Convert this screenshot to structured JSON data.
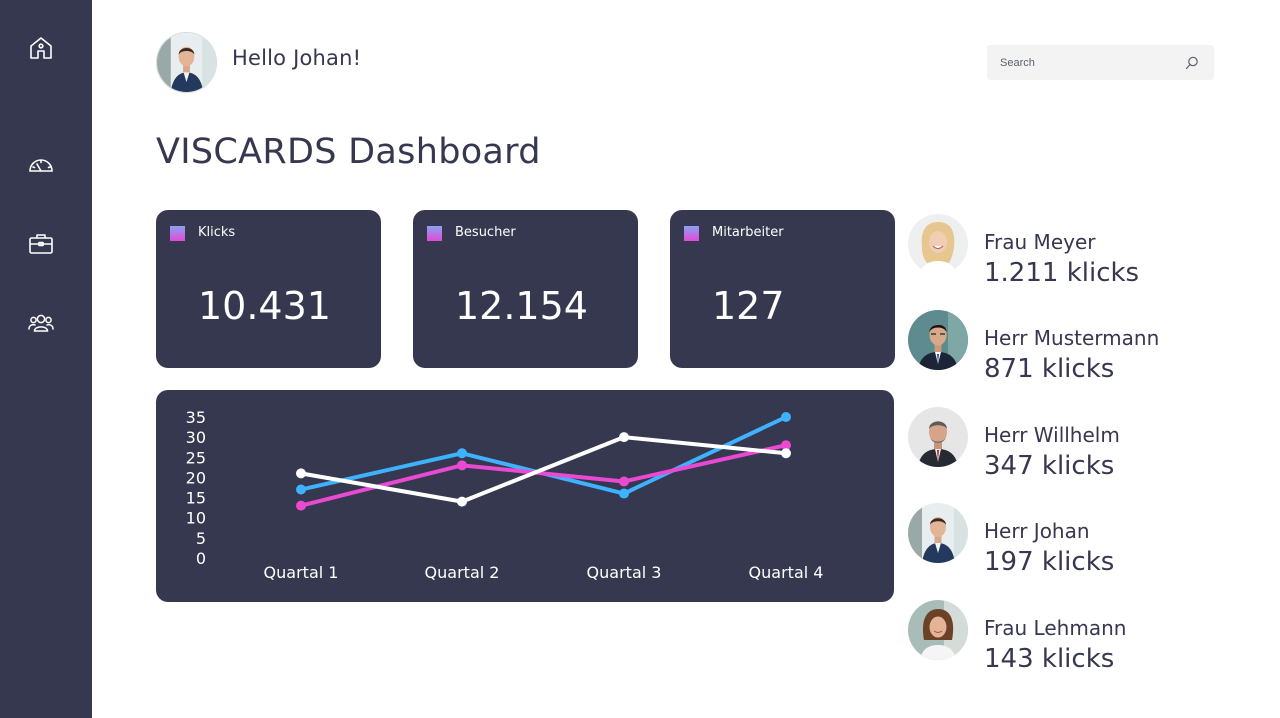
{
  "sidebar": {
    "items": [
      {
        "icon": "home-icon"
      },
      {
        "icon": "speedometer-icon"
      },
      {
        "icon": "briefcase-icon"
      },
      {
        "icon": "users-icon"
      }
    ]
  },
  "header": {
    "greeting": "Hello Johan!",
    "search": {
      "placeholder": "Search",
      "icon": "search-icon"
    }
  },
  "page": {
    "title": "VISCARDS Dashboard"
  },
  "stats": [
    {
      "label": "Klicks",
      "value": "10.431"
    },
    {
      "label": "Besucher",
      "value": "12.154"
    },
    {
      "label": "Mitarbeiter",
      "value": "127"
    }
  ],
  "chart_data": {
    "type": "line",
    "categories": [
      "Quartal 1",
      "Quartal 2",
      "Quartal 3",
      "Quartal 4"
    ],
    "yticks": [
      0,
      5,
      10,
      15,
      20,
      25,
      30,
      35
    ],
    "ylim": [
      0,
      35
    ],
    "grid": false,
    "legend": "none",
    "series": [
      {
        "color": "#3fb2ff",
        "values": [
          17,
          26,
          16,
          35
        ]
      },
      {
        "color": "#ea49d2",
        "values": [
          13,
          23,
          19,
          28
        ]
      },
      {
        "color": "#ffffff",
        "values": [
          21,
          14,
          30,
          26
        ]
      }
    ]
  },
  "people": [
    {
      "name": "Frau Meyer",
      "klicks": "1.211 klicks"
    },
    {
      "name": "Herr Mustermann",
      "klicks": "871 klicks"
    },
    {
      "name": "Herr Willhelm",
      "klicks": "347 klicks"
    },
    {
      "name": "Herr Johan",
      "klicks": "197 klicks"
    },
    {
      "name": "Frau Lehmann",
      "klicks": "143 klicks"
    }
  ],
  "colors": {
    "sidebar": "#35384f",
    "card": "#35384f",
    "text": "#35384f",
    "series_blue": "#3fb2ff",
    "series_pink": "#ea49d2",
    "series_white": "#ffffff"
  }
}
